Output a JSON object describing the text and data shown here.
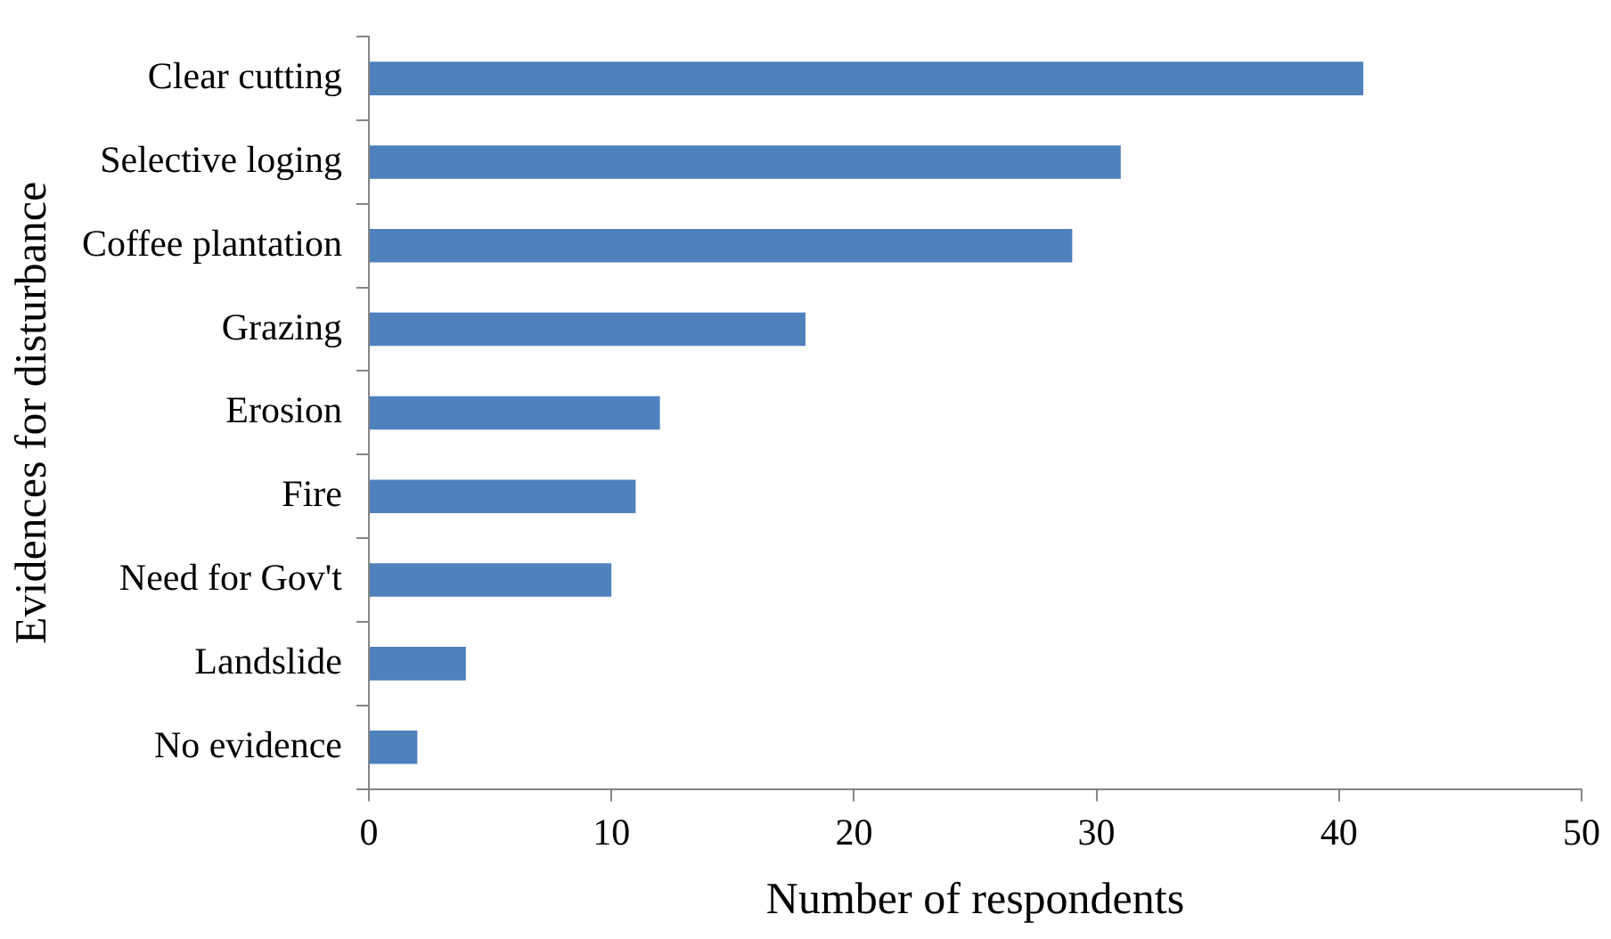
{
  "chart_data": {
    "type": "bar",
    "orientation": "horizontal",
    "xlabel": "Number of respondents",
    "ylabel": "Evidences for disturbance",
    "categories": [
      "Clear cutting",
      "Selective loging",
      "Coffee plantation",
      "Grazing",
      "Erosion",
      "Fire",
      "Need for Gov't",
      "Landslide",
      "No evidence"
    ],
    "values": [
      41,
      31,
      29,
      18,
      12,
      11,
      10,
      4,
      2
    ],
    "color": "#4f81bd",
    "xlim": [
      0,
      50
    ],
    "xticks": [
      0,
      10,
      20,
      30,
      40,
      50
    ],
    "grid": false,
    "legend": false
  }
}
